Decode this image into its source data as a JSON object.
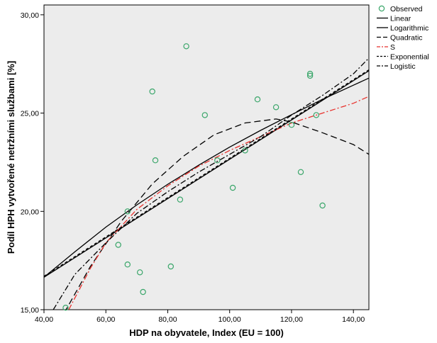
{
  "chart_data": {
    "type": "scatter",
    "xlabel": "HDP na obyvatele, Index (EU = 100)",
    "ylabel": "Podíl HPH vytvořené netržními službami [%]",
    "xlim": [
      40,
      145
    ],
    "ylim": [
      15,
      30.5
    ],
    "xticks": [
      40,
      60,
      80,
      100,
      120,
      140
    ],
    "yticks": [
      15,
      20,
      25,
      30
    ],
    "xtick_labels": [
      "40,00",
      "60,00",
      "80,00",
      "100,00",
      "120,00",
      "140,00"
    ],
    "ytick_labels": [
      "15,00",
      "20,00",
      "25,00",
      "30,00"
    ],
    "grid": false,
    "background_color": "#ececec",
    "legend_position": "top-right, outside plot",
    "observed": {
      "name": "Observed",
      "marker": "open-circle",
      "color": "#3aa66a",
      "points": [
        [
          47,
          15.1
        ],
        [
          64,
          18.3
        ],
        [
          67,
          20.0
        ],
        [
          67,
          17.3
        ],
        [
          71,
          16.9
        ],
        [
          72,
          15.9
        ],
        [
          75,
          26.1
        ],
        [
          76,
          22.6
        ],
        [
          81,
          17.2
        ],
        [
          84,
          20.6
        ],
        [
          86,
          28.4
        ],
        [
          92,
          24.9
        ],
        [
          96,
          22.6
        ],
        [
          101,
          21.2
        ],
        [
          105,
          23.1
        ],
        [
          109,
          25.7
        ],
        [
          115,
          25.3
        ],
        [
          120,
          24.4
        ],
        [
          123,
          22.0
        ],
        [
          126,
          27.0
        ],
        [
          126,
          26.9
        ],
        [
          128,
          24.9
        ],
        [
          130,
          20.3
        ]
      ]
    },
    "fit_lines": [
      {
        "name": "Linear",
        "style": "solid",
        "color": "#000000",
        "x": [
          40,
          145
        ],
        "y": [
          16.65,
          27.15
        ]
      },
      {
        "name": "Logarithmic",
        "style": "solid",
        "color": "#000000",
        "x": [
          40,
          50,
          60,
          70,
          80,
          90,
          100,
          110,
          120,
          130,
          140,
          145
        ],
        "y": [
          16.65,
          17.95,
          19.2,
          20.33,
          21.38,
          22.35,
          23.27,
          24.12,
          24.92,
          25.7,
          26.42,
          26.78
        ]
      },
      {
        "name": "Quadratic",
        "style": "dashed",
        "color": "#000000",
        "x": [
          45,
          55,
          65,
          75,
          85,
          95,
          105,
          115,
          120,
          130,
          140,
          145
        ],
        "y": [
          14.4,
          17.2,
          19.5,
          21.4,
          22.8,
          23.9,
          24.5,
          24.7,
          24.55,
          24.0,
          23.4,
          22.9
        ]
      },
      {
        "name": "S",
        "style": "dash-dot",
        "color": "#e8322d",
        "x": [
          48,
          55,
          60,
          70,
          80,
          90,
          100,
          110,
          120,
          130,
          140,
          145
        ],
        "y": [
          15.0,
          17.1,
          18.4,
          20.1,
          21.3,
          22.3,
          23.1,
          23.8,
          24.5,
          25.0,
          25.5,
          25.85
        ]
      },
      {
        "name": "Exponential",
        "style": "short-dashed",
        "color": "#000000",
        "x": [
          40,
          145
        ],
        "y": [
          16.7,
          27.2
        ]
      },
      {
        "name": "Logistic",
        "style": "dash-dot",
        "color": "#000000",
        "x": [
          43,
          50,
          60,
          70,
          80,
          90,
          100,
          110,
          120,
          130,
          140,
          145
        ],
        "y": [
          15.0,
          16.8,
          18.4,
          19.9,
          21.0,
          22.0,
          22.9,
          23.8,
          24.9,
          25.9,
          27.0,
          27.8
        ]
      }
    ],
    "legend": [
      "Observed",
      "Linear",
      "Logarithmic",
      "Quadratic",
      "S",
      "Exponential",
      "Logistic"
    ]
  }
}
